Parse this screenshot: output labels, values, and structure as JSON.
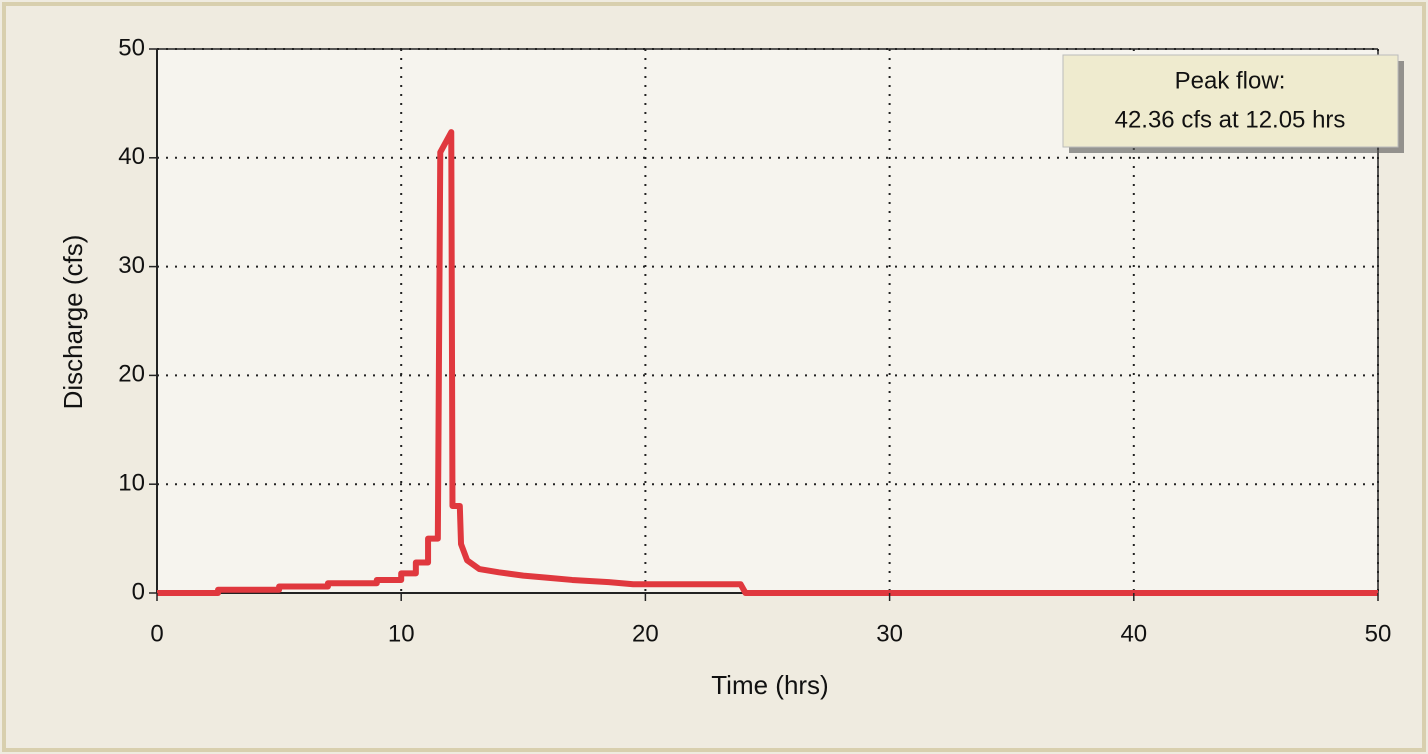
{
  "chart_data": {
    "type": "line",
    "x_label": "Time (hrs)",
    "y_label": "Discharge (cfs)",
    "annotation": [
      "Peak flow:",
      "42.36 cfs at 12.05 hrs"
    ],
    "x": [
      0,
      2.5,
      2.5,
      5,
      5,
      7,
      7,
      9,
      9,
      10,
      10,
      10.6,
      10.6,
      11.1,
      11.1,
      11.5,
      11.6,
      12.05,
      12.1,
      12.4,
      12.45,
      12.7,
      13.2,
      14,
      15,
      16,
      17,
      18.5,
      19.5,
      23.9,
      24.1,
      50
    ],
    "series": [
      {
        "color": "#e0383e",
        "values": [
          0,
          0,
          0.3,
          0.3,
          0.6,
          0.6,
          0.9,
          0.9,
          1.2,
          1.2,
          1.8,
          1.8,
          2.8,
          2.8,
          5,
          5,
          40.5,
          42.36,
          8,
          8,
          4.5,
          3,
          2.2,
          1.9,
          1.6,
          1.4,
          1.2,
          1.0,
          0.8,
          0.8,
          0,
          0
        ]
      }
    ],
    "xlim": [
      0,
      50
    ],
    "xticks": [
      0,
      10,
      20,
      30,
      40,
      50
    ],
    "ylim": [
      0,
      50
    ],
    "yticks": [
      0,
      10,
      20,
      30,
      40,
      50
    ],
    "grid": true
  }
}
